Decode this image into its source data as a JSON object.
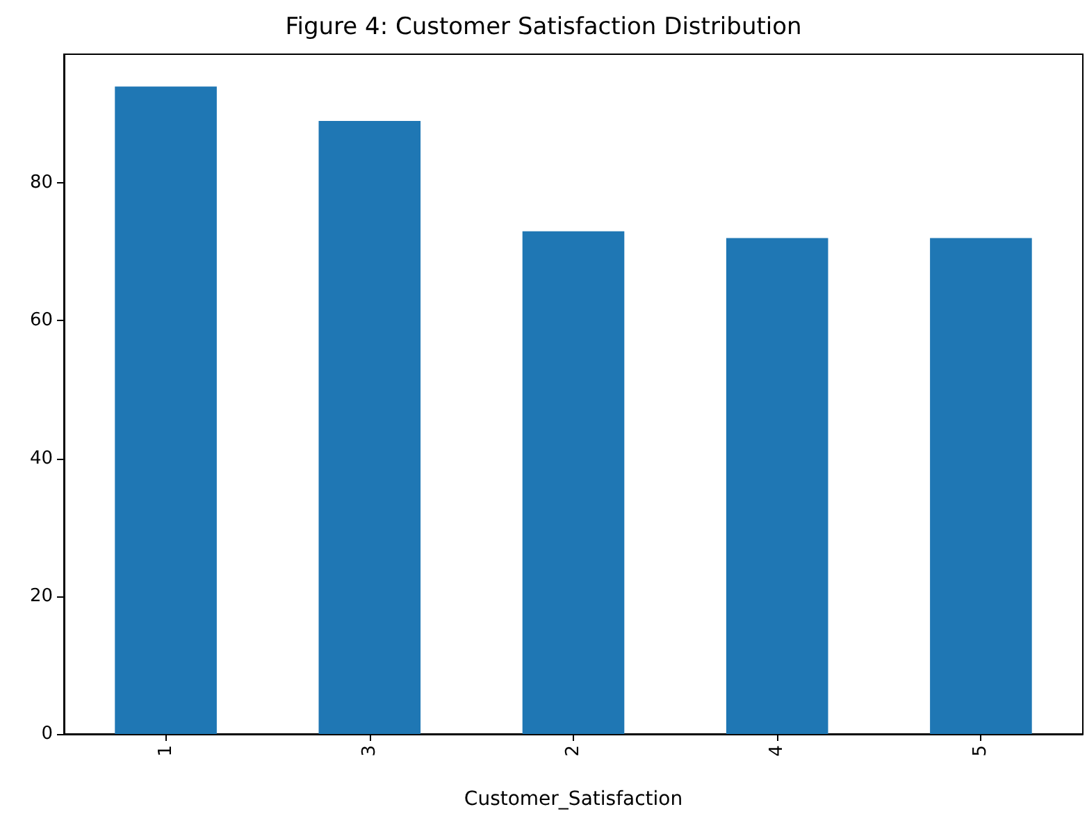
{
  "chart_data": {
    "type": "bar",
    "title": "Figure 4: Customer Satisfaction Distribution",
    "xlabel": "Customer_Satisfaction",
    "categories": [
      "1",
      "3",
      "2",
      "4",
      "5"
    ],
    "values": [
      94,
      89,
      73,
      72,
      72
    ],
    "color": "#1f77b4",
    "ylim": [
      0,
      98.7
    ],
    "yticks": [
      0,
      20,
      40,
      60,
      80
    ],
    "grid": false
  }
}
